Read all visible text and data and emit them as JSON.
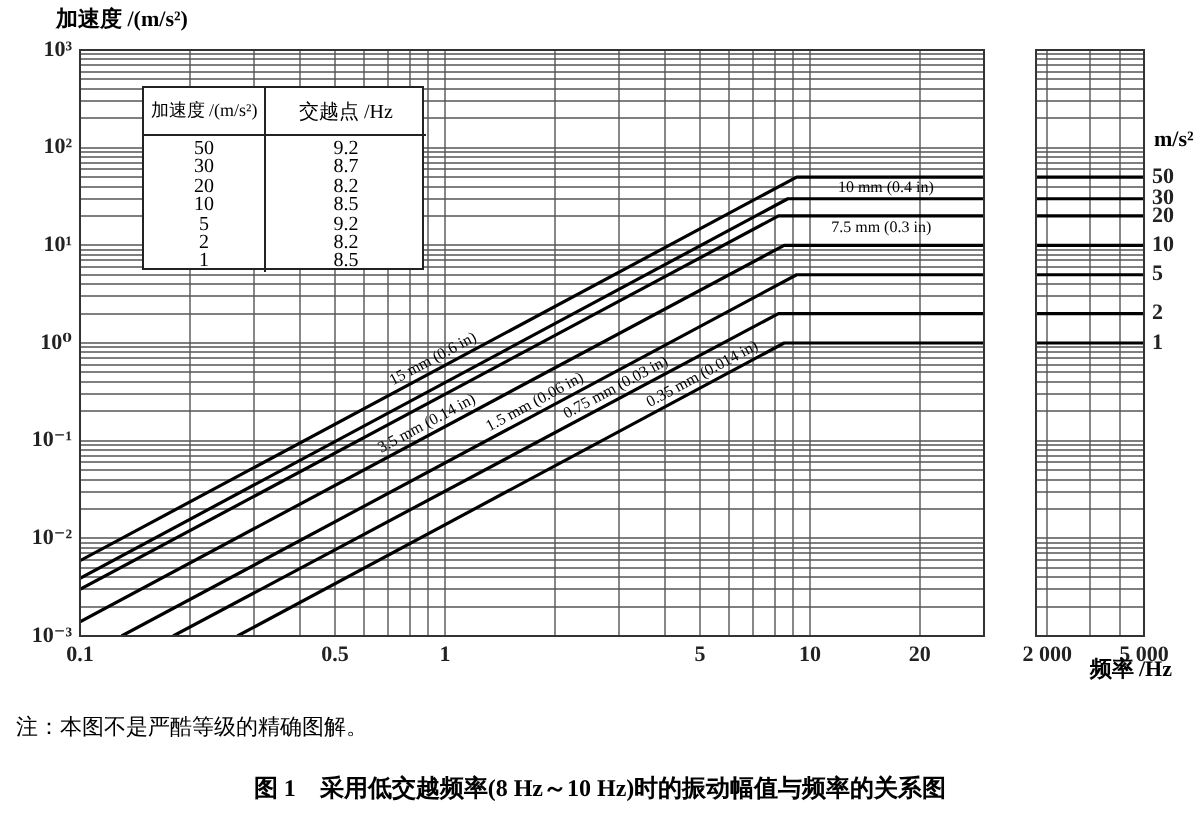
{
  "chart_data": [
    {
      "type": "line",
      "title": "图 1　采用低交越频率(8 Hz～10 Hz)时的振动幅值与频率的关系图",
      "ylabel": "加速度 /(m/s²)",
      "annotations": [
        "注：本图不是严酷等级的精确图解。",
        "加速度 /(m/s²)",
        "交越点 /Hz",
        "50",
        "9.2",
        "30",
        "8.7",
        "20",
        "8.2",
        "10",
        "8.5",
        "5",
        "9.2",
        "2",
        "8.2",
        "1",
        "8.5"
      ],
      "log": "xy",
      "grid": true,
      "xlim": [
        0.1,
        30
      ],
      "ylim": [
        0.001,
        1000
      ],
      "xticks": [
        0.1,
        {
          "value": 0.2,
          "label": null
        },
        {
          "value": 0.3,
          "label": null
        },
        {
          "value": 0.4,
          "label": null
        },
        0.5,
        {
          "value": 0.6,
          "label": null
        },
        {
          "value": 0.7,
          "label": null
        },
        {
          "value": 0.8,
          "label": null
        },
        {
          "value": 0.9,
          "label": null
        },
        1,
        {
          "value": 2,
          "label": null
        },
        {
          "value": 3,
          "label": null
        },
        {
          "value": 4,
          "label": null
        },
        5,
        {
          "value": 6,
          "label": null
        },
        {
          "value": 7,
          "label": null
        },
        {
          "value": 8,
          "label": null
        },
        {
          "value": 9,
          "label": null
        },
        10,
        20,
        {
          "value": 30,
          "label": null
        }
      ],
      "yticks": [
        {
          "value": 0.001,
          "label": "10⁻³"
        },
        {
          "value": 0.002,
          "label": null
        },
        {
          "value": 0.003,
          "label": null
        },
        {
          "value": 0.004,
          "label": null
        },
        {
          "value": 0.005,
          "label": null
        },
        {
          "value": 0.006,
          "label": null
        },
        {
          "value": 0.007,
          "label": null
        },
        {
          "value": 0.008,
          "label": null
        },
        {
          "value": 0.009,
          "label": null
        },
        {
          "value": 0.01,
          "label": "10⁻²"
        },
        {
          "value": 0.02,
          "label": null
        },
        {
          "value": 0.03,
          "label": null
        },
        {
          "value": 0.04,
          "label": null
        },
        {
          "value": 0.05,
          "label": null
        },
        {
          "value": 0.06,
          "label": null
        },
        {
          "value": 0.07,
          "label": null
        },
        {
          "value": 0.08,
          "label": null
        },
        {
          "value": 0.09,
          "label": null
        },
        {
          "value": 0.1,
          "label": "10⁻¹"
        },
        {
          "value": 0.2,
          "label": null
        },
        {
          "value": 0.3,
          "label": null
        },
        {
          "value": 0.4,
          "label": null
        },
        {
          "value": 0.5,
          "label": null
        },
        {
          "value": 0.6,
          "label": null
        },
        {
          "value": 0.7,
          "label": null
        },
        {
          "value": 0.8,
          "label": null
        },
        {
          "value": 0.9,
          "label": null
        },
        {
          "value": 1,
          "label": "10⁰"
        },
        {
          "value": 2,
          "label": null
        },
        {
          "value": 3,
          "label": null
        },
        {
          "value": 4,
          "label": null
        },
        {
          "value": 5,
          "label": null
        },
        {
          "value": 6,
          "label": null
        },
        {
          "value": 7,
          "label": null
        },
        {
          "value": 8,
          "label": null
        },
        {
          "value": 9,
          "label": null
        },
        {
          "value": 10,
          "label": "10¹"
        },
        {
          "value": 20,
          "label": null
        },
        {
          "value": 30,
          "label": null
        },
        {
          "value": 40,
          "label": null
        },
        {
          "value": 50,
          "label": null
        },
        {
          "value": 60,
          "label": null
        },
        {
          "value": 70,
          "label": null
        },
        {
          "value": 80,
          "label": null
        },
        {
          "value": 90,
          "label": null
        },
        {
          "value": 100,
          "label": "10²"
        },
        {
          "value": 200,
          "label": null
        },
        {
          "value": 300,
          "label": null
        },
        {
          "value": 400,
          "label": null
        },
        {
          "value": 500,
          "label": null
        },
        {
          "value": 600,
          "label": null
        },
        {
          "value": 700,
          "label": null
        },
        {
          "value": 800,
          "label": null
        },
        {
          "value": 900,
          "label": null
        },
        {
          "value": 1000,
          "label": "10³"
        }
      ],
      "series": [
        {
          "name": "15 mm (0.6 in)",
          "color": "#000000",
          "x": [
            0.1,
            9.2,
            30
          ],
          "values": [
            0.0059,
            50,
            50
          ]
        },
        {
          "name": "10 mm (0.4 in)",
          "color": "#000000",
          "x": [
            0.1,
            8.7,
            30
          ],
          "values": [
            0.0039,
            30,
            30
          ]
        },
        {
          "name": "7.5 mm (0.3 in)",
          "color": "#000000",
          "x": [
            0.1,
            8.2,
            30
          ],
          "values": [
            0.003,
            20,
            20
          ]
        },
        {
          "name": "3.5 mm (0.14 in)",
          "color": "#000000",
          "x": [
            0.1,
            8.5,
            30
          ],
          "values": [
            0.0014,
            10,
            10
          ]
        },
        {
          "name": "1.5 mm (0.06 in)",
          "color": "#000000",
          "x": [
            0.13,
            9.2,
            30
          ],
          "values": [
            0.001,
            5,
            5
          ]
        },
        {
          "name": "0.75 mm (0.03 in)",
          "color": "#000000",
          "x": [
            0.18,
            8.2,
            30
          ],
          "values": [
            0.001,
            2,
            2
          ]
        },
        {
          "name": "0.35 mm (0.014 in)",
          "color": "#000000",
          "x": [
            0.27,
            8.5,
            30
          ],
          "values": [
            0.001,
            1,
            1
          ]
        }
      ]
    },
    {
      "type": "line",
      "xlabel": "频率 /Hz",
      "ylabel": "m/s²",
      "log": "xy",
      "grid": true,
      "xlim": [
        1800,
        5000
      ],
      "ylim": [
        0.001,
        1000
      ],
      "xticks": [
        {
          "value": 2000,
          "label": "2 000"
        },
        {
          "value": 3000,
          "label": null
        },
        {
          "value": 4000,
          "label": null
        },
        {
          "value": 5000,
          "label": "5 000"
        }
      ],
      "yticks": [
        {
          "value": 0.001,
          "label": null
        },
        {
          "value": 0.002,
          "label": null
        },
        {
          "value": 0.003,
          "label": null
        },
        {
          "value": 0.004,
          "label": null
        },
        {
          "value": 0.005,
          "label": null
        },
        {
          "value": 0.006,
          "label": null
        },
        {
          "value": 0.007,
          "label": null
        },
        {
          "value": 0.008,
          "label": null
        },
        {
          "value": 0.009,
          "label": null
        },
        {
          "value": 0.01,
          "label": null
        },
        {
          "value": 0.02,
          "label": null
        },
        {
          "value": 0.03,
          "label": null
        },
        {
          "value": 0.04,
          "label": null
        },
        {
          "value": 0.05,
          "label": null
        },
        {
          "value": 0.06,
          "label": null
        },
        {
          "value": 0.07,
          "label": null
        },
        {
          "value": 0.08,
          "label": null
        },
        {
          "value": 0.09,
          "label": null
        },
        {
          "value": 0.1,
          "label": null
        },
        {
          "value": 0.2,
          "label": null
        },
        {
          "value": 0.3,
          "label": null
        },
        {
          "value": 0.4,
          "label": null
        },
        {
          "value": 0.5,
          "label": null
        },
        {
          "value": 0.6,
          "label": null
        },
        {
          "value": 0.7,
          "label": null
        },
        {
          "value": 0.8,
          "label": null
        },
        {
          "value": 0.9,
          "label": null
        },
        1,
        2,
        {
          "value": 3,
          "label": null
        },
        {
          "value": 4,
          "label": null
        },
        5,
        {
          "value": 6,
          "label": null
        },
        {
          "value": 7,
          "label": null
        },
        {
          "value": 8,
          "label": null
        },
        {
          "value": 9,
          "label": null
        },
        10,
        20,
        30,
        {
          "value": 40,
          "label": null
        },
        50,
        {
          "value": 60,
          "label": null
        },
        {
          "value": 70,
          "label": null
        },
        {
          "value": 80,
          "label": null
        },
        {
          "value": 90,
          "label": null
        },
        {
          "value": 100,
          "label": null
        },
        {
          "value": 200,
          "label": null
        },
        {
          "value": 300,
          "label": null
        },
        {
          "value": 400,
          "label": null
        },
        {
          "value": 500,
          "label": null
        },
        {
          "value": 600,
          "label": null
        },
        {
          "value": 700,
          "label": null
        },
        {
          "value": 800,
          "label": null
        },
        {
          "value": 900,
          "label": null
        },
        {
          "value": 1000,
          "label": null
        }
      ],
      "series": [
        {
          "color": "#000000",
          "x": [
            1800,
            5000
          ],
          "values": [
            50,
            50
          ]
        },
        {
          "color": "#000000",
          "x": [
            1800,
            5000
          ],
          "values": [
            30,
            30
          ]
        },
        {
          "color": "#000000",
          "x": [
            1800,
            5000
          ],
          "values": [
            20,
            20
          ]
        },
        {
          "color": "#000000",
          "x": [
            1800,
            5000
          ],
          "values": [
            10,
            10
          ]
        },
        {
          "color": "#000000",
          "x": [
            1800,
            5000
          ],
          "values": [
            5,
            5
          ]
        },
        {
          "color": "#000000",
          "x": [
            1800,
            5000
          ],
          "values": [
            2,
            2
          ]
        },
        {
          "color": "#000000",
          "x": [
            1800,
            5000
          ],
          "values": [
            1,
            1
          ]
        }
      ]
    }
  ]
}
